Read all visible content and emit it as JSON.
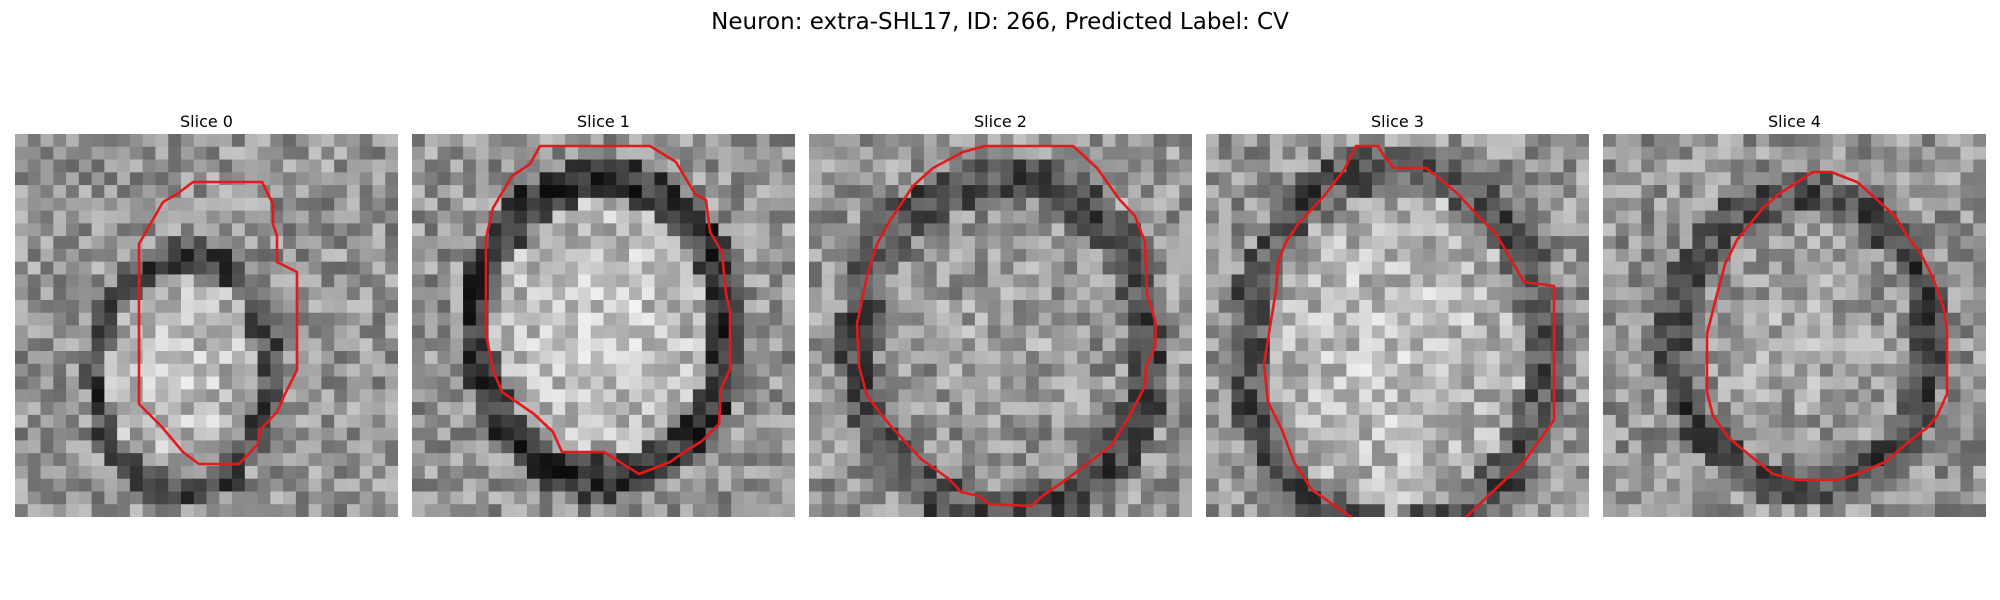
{
  "figure": {
    "title": "Neuron: extra-SHL17, ID: 266, Predicted Label: CV"
  },
  "contour_color": "#e31a1c",
  "panels": [
    {
      "title": "Slice 0"
    },
    {
      "title": "Slice 1"
    },
    {
      "title": "Slice 2"
    },
    {
      "title": "Slice 3"
    },
    {
      "title": "Slice 4"
    }
  ]
}
